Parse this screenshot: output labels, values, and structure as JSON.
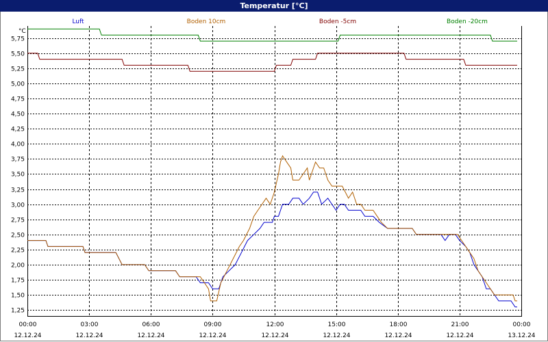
{
  "title": "Temperatur [°C]",
  "chart_data": {
    "type": "line",
    "title": "Temperatur [°C]",
    "ylabel": "°C",
    "xlabel": "",
    "ylim": [
      1.15,
      5.95
    ],
    "xlim": [
      0,
      24
    ],
    "grid": true,
    "legend_position": "top",
    "y_ticks": [
      "5,75",
      "5,50",
      "5,25",
      "5,00",
      "4,75",
      "4,50",
      "4,25",
      "4,00",
      "3,75",
      "3,50",
      "3,25",
      "3,00",
      "2,75",
      "2,50",
      "2,25",
      "2,00",
      "1,75",
      "1,50",
      "1,25"
    ],
    "y_tick_values": [
      5.75,
      5.5,
      5.25,
      5.0,
      4.75,
      4.5,
      4.25,
      4.0,
      3.75,
      3.5,
      3.25,
      3.0,
      2.75,
      2.5,
      2.25,
      2.0,
      1.75,
      1.5,
      1.25
    ],
    "x_ticks": [
      {
        "time": "00:00",
        "date": "12.12.24",
        "hour": 0
      },
      {
        "time": "03:00",
        "date": "12.12.24",
        "hour": 3
      },
      {
        "time": "06:00",
        "date": "12.12.24",
        "hour": 6
      },
      {
        "time": "09:00",
        "date": "12.12.24",
        "hour": 9
      },
      {
        "time": "12:00",
        "date": "12.12.24",
        "hour": 12
      },
      {
        "time": "15:00",
        "date": "12.12.24",
        "hour": 15
      },
      {
        "time": "18:00",
        "date": "12.12.24",
        "hour": 18
      },
      {
        "time": "21:00",
        "date": "12.12.24",
        "hour": 21
      },
      {
        "time": "00:00",
        "date": "13.12.24",
        "hour": 24
      }
    ],
    "series": [
      {
        "name": "Luft",
        "color": "#0000cc",
        "points": [
          [
            0,
            2.4
          ],
          [
            0.9,
            2.4
          ],
          [
            1.0,
            2.3
          ],
          [
            2.7,
            2.3
          ],
          [
            2.8,
            2.2
          ],
          [
            4.3,
            2.2
          ],
          [
            4.6,
            2.0
          ],
          [
            5.7,
            2.0
          ],
          [
            5.9,
            1.9
          ],
          [
            7.2,
            1.9
          ],
          [
            7.4,
            1.8
          ],
          [
            8.2,
            1.8
          ],
          [
            8.4,
            1.7
          ],
          [
            8.8,
            1.7
          ],
          [
            9.0,
            1.6
          ],
          [
            9.3,
            1.6
          ],
          [
            9.5,
            1.8
          ],
          [
            9.8,
            1.9
          ],
          [
            10.1,
            2.0
          ],
          [
            10.4,
            2.2
          ],
          [
            10.7,
            2.4
          ],
          [
            11.0,
            2.5
          ],
          [
            11.3,
            2.6
          ],
          [
            11.5,
            2.7
          ],
          [
            11.9,
            2.7
          ],
          [
            12.0,
            2.8
          ],
          [
            12.2,
            2.8
          ],
          [
            12.4,
            3.0
          ],
          [
            12.7,
            3.0
          ],
          [
            12.9,
            3.1
          ],
          [
            13.2,
            3.1
          ],
          [
            13.4,
            3.0
          ],
          [
            13.7,
            3.1
          ],
          [
            13.9,
            3.2
          ],
          [
            14.1,
            3.2
          ],
          [
            14.3,
            3.0
          ],
          [
            14.6,
            3.1
          ],
          [
            14.8,
            3.0
          ],
          [
            15.0,
            2.9
          ],
          [
            15.2,
            3.0
          ],
          [
            15.4,
            3.0
          ],
          [
            15.6,
            2.9
          ],
          [
            16.2,
            2.9
          ],
          [
            16.4,
            2.8
          ],
          [
            16.8,
            2.8
          ],
          [
            17.1,
            2.7
          ],
          [
            17.5,
            2.6
          ],
          [
            18.3,
            2.6
          ],
          [
            18.7,
            2.6
          ],
          [
            18.9,
            2.5
          ],
          [
            20.1,
            2.5
          ],
          [
            20.3,
            2.4
          ],
          [
            20.5,
            2.5
          ],
          [
            20.8,
            2.5
          ],
          [
            21.0,
            2.4
          ],
          [
            21.3,
            2.3
          ],
          [
            21.5,
            2.2
          ],
          [
            21.7,
            2.0
          ],
          [
            21.9,
            1.9
          ],
          [
            22.1,
            1.8
          ],
          [
            22.3,
            1.6
          ],
          [
            22.5,
            1.6
          ],
          [
            22.7,
            1.5
          ],
          [
            22.9,
            1.4
          ],
          [
            23.5,
            1.4
          ],
          [
            23.7,
            1.3
          ],
          [
            23.8,
            1.3
          ]
        ]
      },
      {
        "name": "Boden 10cm",
        "color": "#b05f00",
        "points": [
          [
            0,
            2.4
          ],
          [
            0.9,
            2.4
          ],
          [
            1.0,
            2.3
          ],
          [
            2.7,
            2.3
          ],
          [
            2.8,
            2.2
          ],
          [
            4.3,
            2.2
          ],
          [
            4.6,
            2.0
          ],
          [
            5.7,
            2.0
          ],
          [
            5.9,
            1.9
          ],
          [
            7.2,
            1.9
          ],
          [
            7.4,
            1.8
          ],
          [
            8.4,
            1.8
          ],
          [
            8.6,
            1.7
          ],
          [
            8.8,
            1.6
          ],
          [
            8.9,
            1.4
          ],
          [
            9.2,
            1.4
          ],
          [
            9.4,
            1.7
          ],
          [
            9.7,
            1.9
          ],
          [
            10.0,
            2.1
          ],
          [
            10.3,
            2.3
          ],
          [
            10.5,
            2.4
          ],
          [
            10.8,
            2.6
          ],
          [
            11.0,
            2.8
          ],
          [
            11.2,
            2.9
          ],
          [
            11.4,
            3.0
          ],
          [
            11.6,
            3.1
          ],
          [
            11.8,
            3.0
          ],
          [
            12.0,
            3.2
          ],
          [
            12.2,
            3.5
          ],
          [
            12.3,
            3.7
          ],
          [
            12.4,
            3.8
          ],
          [
            12.6,
            3.7
          ],
          [
            12.8,
            3.6
          ],
          [
            12.9,
            3.4
          ],
          [
            13.2,
            3.4
          ],
          [
            13.4,
            3.5
          ],
          [
            13.6,
            3.6
          ],
          [
            13.7,
            3.4
          ],
          [
            13.8,
            3.5
          ],
          [
            14.0,
            3.7
          ],
          [
            14.2,
            3.6
          ],
          [
            14.4,
            3.6
          ],
          [
            14.6,
            3.4
          ],
          [
            14.8,
            3.3
          ],
          [
            15.3,
            3.3
          ],
          [
            15.6,
            3.1
          ],
          [
            15.8,
            3.2
          ],
          [
            16.0,
            3.0
          ],
          [
            16.2,
            3.0
          ],
          [
            16.4,
            2.9
          ],
          [
            16.8,
            2.9
          ],
          [
            17.0,
            2.8
          ],
          [
            17.2,
            2.7
          ],
          [
            17.5,
            2.6
          ],
          [
            18.7,
            2.6
          ],
          [
            18.9,
            2.5
          ],
          [
            20.9,
            2.5
          ],
          [
            21.1,
            2.4
          ],
          [
            21.3,
            2.3
          ],
          [
            21.5,
            2.2
          ],
          [
            21.7,
            2.1
          ],
          [
            21.9,
            1.9
          ],
          [
            22.1,
            1.8
          ],
          [
            22.3,
            1.7
          ],
          [
            22.5,
            1.6
          ],
          [
            22.7,
            1.5
          ],
          [
            23.6,
            1.5
          ],
          [
            23.7,
            1.4
          ],
          [
            23.8,
            1.4
          ]
        ]
      },
      {
        "name": "Boden -5cm",
        "color": "#800000",
        "points": [
          [
            0,
            5.5
          ],
          [
            0.5,
            5.5
          ],
          [
            0.6,
            5.4
          ],
          [
            4.6,
            5.4
          ],
          [
            4.7,
            5.3
          ],
          [
            7.8,
            5.3
          ],
          [
            7.9,
            5.2
          ],
          [
            12.0,
            5.2
          ],
          [
            12.1,
            5.3
          ],
          [
            12.8,
            5.3
          ],
          [
            12.9,
            5.4
          ],
          [
            14.0,
            5.4
          ],
          [
            14.1,
            5.5
          ],
          [
            18.3,
            5.5
          ],
          [
            18.4,
            5.4
          ],
          [
            21.2,
            5.4
          ],
          [
            21.3,
            5.3
          ],
          [
            23.8,
            5.3
          ]
        ]
      },
      {
        "name": "Boden -20cm",
        "color": "#008000",
        "points": [
          [
            0,
            5.9
          ],
          [
            3.5,
            5.9
          ],
          [
            3.6,
            5.8
          ],
          [
            8.3,
            5.8
          ],
          [
            8.4,
            5.7
          ],
          [
            15.1,
            5.7
          ],
          [
            15.2,
            5.8
          ],
          [
            22.5,
            5.8
          ],
          [
            22.6,
            5.7
          ],
          [
            23.8,
            5.7
          ]
        ]
      }
    ]
  }
}
